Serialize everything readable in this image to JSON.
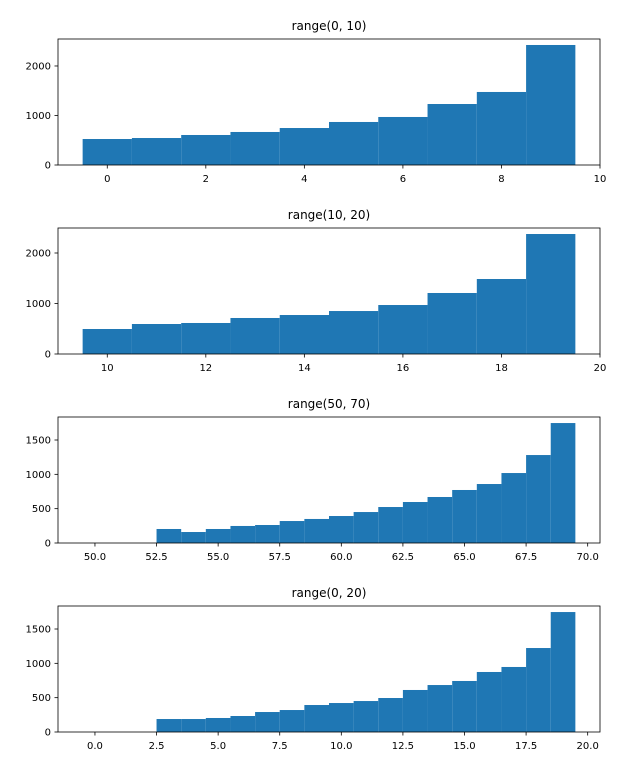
{
  "chart_data": [
    {
      "type": "histogram",
      "title": "range(0, 10)",
      "color": "#1f77b4",
      "bins": [
        -0.5,
        0.5,
        1.5,
        2.5,
        3.5,
        4.5,
        5.5,
        6.5,
        7.5,
        8.5,
        9.5
      ],
      "values": [
        525,
        545,
        606,
        667,
        747,
        869,
        970,
        1232,
        1475,
        2424
      ],
      "xlim": [
        -1,
        10
      ],
      "xticks": [
        0,
        2,
        4,
        6,
        8,
        10
      ],
      "ylim": [
        0,
        2545
      ],
      "yticks": [
        0,
        1000,
        2000
      ]
    },
    {
      "type": "histogram",
      "title": "range(10, 20)",
      "color": "#1f77b4",
      "bins": [
        9.5,
        10.5,
        11.5,
        12.5,
        13.5,
        14.5,
        15.5,
        16.5,
        17.5,
        18.5,
        19.5
      ],
      "values": [
        495,
        594,
        614,
        713,
        772,
        851,
        970,
        1208,
        1485,
        2376
      ],
      "xlim": [
        9,
        20
      ],
      "xticks": [
        10,
        12,
        14,
        16,
        18,
        20
      ],
      "ylim": [
        0,
        2495
      ],
      "yticks": [
        0,
        1000,
        2000
      ]
    },
    {
      "type": "histogram",
      "title": "range(50, 70)",
      "color": "#1f77b4",
      "bins": [
        49.5,
        50.5,
        51.5,
        52.5,
        53.5,
        54.5,
        55.5,
        56.5,
        57.5,
        58.5,
        59.5,
        60.5,
        61.5,
        62.5,
        63.5,
        64.5,
        65.5,
        66.5,
        67.5,
        68.5,
        69.5
      ],
      "values": [
        0,
        0,
        0,
        204,
        160,
        204,
        248,
        262,
        320,
        350,
        393,
        451,
        524,
        597,
        670,
        772,
        859,
        1019,
        1281,
        1747
      ],
      "xlim": [
        48.5,
        70.5
      ],
      "xticks": [
        {
          "value": 50,
          "label": "50.0"
        },
        52.5,
        {
          "value": 55,
          "label": "55.0"
        },
        57.5,
        {
          "value": 60,
          "label": "60.0"
        },
        62.5,
        {
          "value": 65,
          "label": "65.0"
        },
        67.5,
        {
          "value": 70,
          "label": "70.0"
        }
      ],
      "ylim": [
        0,
        1835
      ],
      "yticks": [
        0,
        500,
        1000,
        1500
      ]
    },
    {
      "type": "histogram",
      "title": "range(0, 20)",
      "color": "#1f77b4",
      "bins": [
        -0.5,
        0.5,
        1.5,
        2.5,
        3.5,
        4.5,
        5.5,
        6.5,
        7.5,
        8.5,
        9.5,
        10.5,
        11.5,
        12.5,
        13.5,
        14.5,
        15.5,
        16.5,
        17.5,
        18.5,
        19.5
      ],
      "values": [
        0,
        0,
        0,
        189,
        189,
        204,
        233,
        291,
        320,
        393,
        422,
        451,
        495,
        612,
        684,
        743,
        874,
        947,
        1223,
        1747
      ],
      "xlim": [
        -1.5,
        20.5
      ],
      "xticks": [
        {
          "value": 0,
          "label": "0.0"
        },
        2.5,
        {
          "value": 5,
          "label": "5.0"
        },
        7.5,
        {
          "value": 10,
          "label": "10.0"
        },
        12.5,
        {
          "value": 15,
          "label": "15.0"
        },
        17.5,
        {
          "value": 20,
          "label": "20.0"
        }
      ],
      "ylim": [
        0,
        1835
      ],
      "yticks": [
        0,
        500,
        1000,
        1500
      ]
    }
  ]
}
